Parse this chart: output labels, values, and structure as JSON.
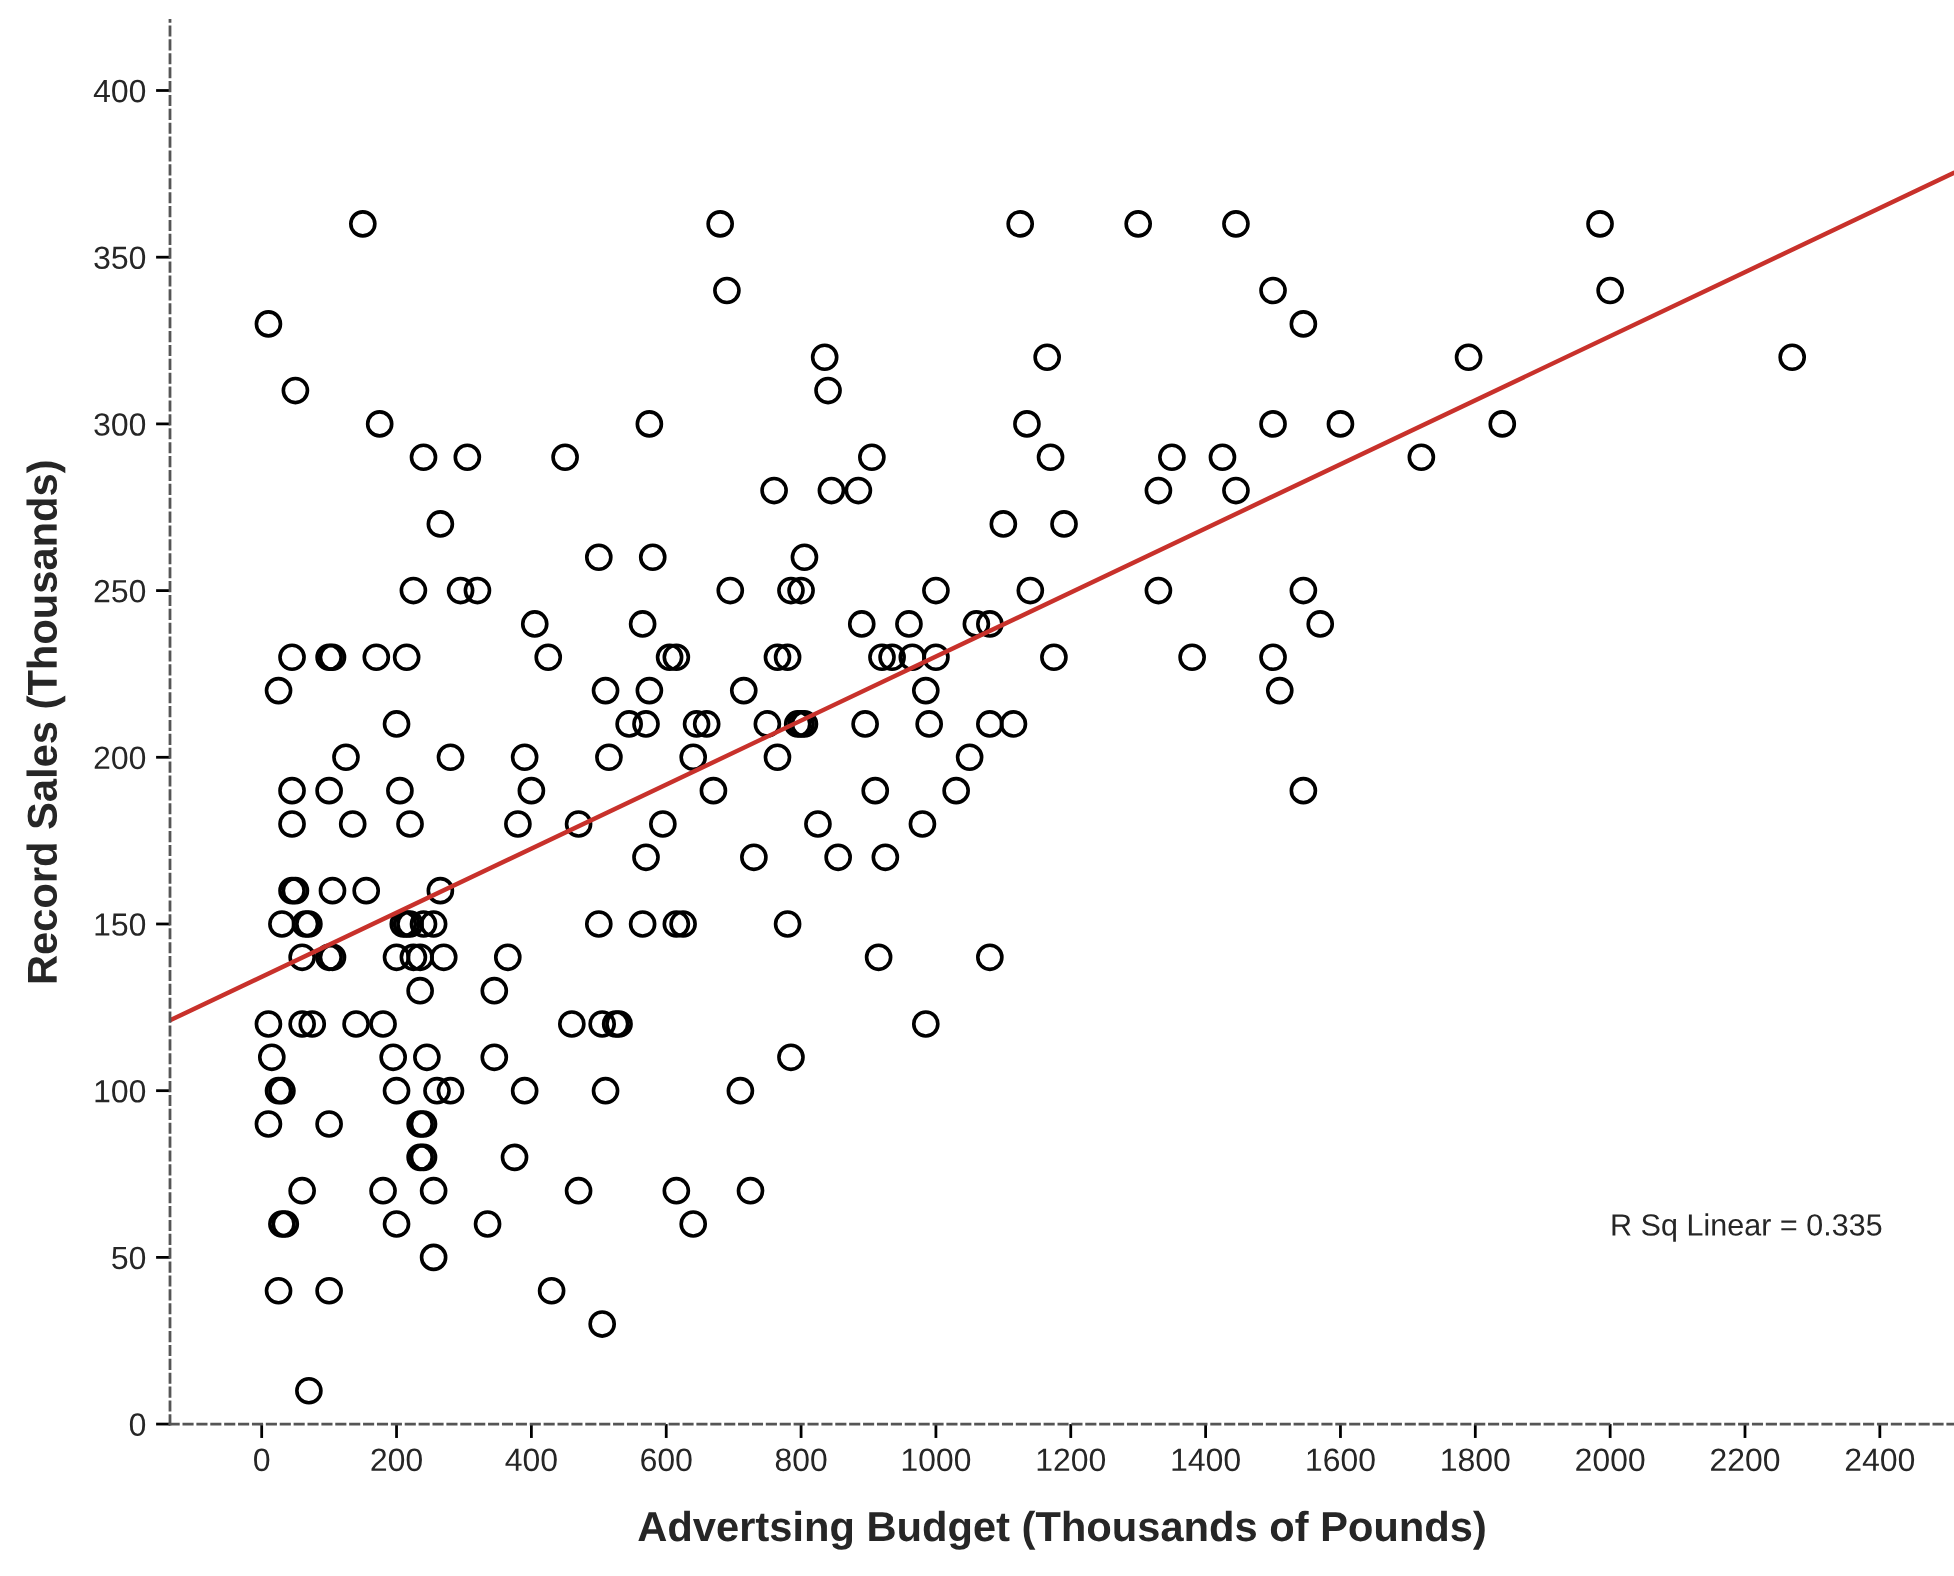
{
  "chart_data": {
    "type": "scatter",
    "xlabel": "Advertsing Budget (Thousands of Pounds)",
    "ylabel": "Record Sales (Thousands)",
    "xlim": [
      -136,
      2510
    ],
    "ylim": [
      0,
      421
    ],
    "xticks": [
      0,
      200,
      400,
      600,
      800,
      1000,
      1200,
      1400,
      1600,
      1800,
      2000,
      2200,
      2400
    ],
    "yticks": [
      0,
      50,
      100,
      150,
      200,
      250,
      300,
      350,
      400
    ],
    "annotations": [
      "R Sq Linear = 0.335"
    ],
    "series": [
      {
        "marker": "circle",
        "color": "#000000",
        "x": [
          150,
          680,
          1125,
          1300,
          1445,
          1985,
          690,
          1500,
          2000,
          10,
          1545,
          835,
          1165,
          1790,
          2270,
          50,
          840,
          175,
          575,
          1135,
          1500,
          1600,
          1840,
          240,
          305,
          450,
          905,
          1170,
          1350,
          1425,
          1720,
          760,
          845,
          885,
          1330,
          1445,
          265,
          1100,
          1190,
          500,
          580,
          805,
          225,
          295,
          320,
          695,
          785,
          800,
          1000,
          1140,
          1330,
          1545,
          405,
          565,
          890,
          960,
          1060,
          1080,
          1570,
          45,
          100,
          105,
          170,
          215,
          425,
          605,
          615,
          765,
          780,
          920,
          935,
          965,
          1000,
          1175,
          1380,
          1500,
          25,
          510,
          575,
          715,
          985,
          1510,
          200,
          545,
          570,
          645,
          660,
          750,
          795,
          800,
          805,
          895,
          990,
          1080,
          1115,
          125,
          280,
          390,
          515,
          640,
          765,
          1050,
          45,
          100,
          205,
          400,
          670,
          910,
          1030,
          1545,
          45,
          135,
          220,
          380,
          470,
          595,
          825,
          980,
          570,
          730,
          855,
          925,
          45,
          50,
          105,
          155,
          265,
          30,
          65,
          70,
          210,
          215,
          220,
          240,
          255,
          500,
          565,
          615,
          625,
          780,
          60,
          100,
          105,
          200,
          225,
          235,
          270,
          365,
          915,
          1080,
          235,
          345,
          10,
          60,
          75,
          140,
          180,
          460,
          505,
          525,
          530,
          985,
          15,
          195,
          245,
          345,
          785,
          25,
          30,
          200,
          260,
          280,
          390,
          510,
          710,
          10,
          100,
          235,
          240,
          235,
          240,
          375,
          60,
          180,
          255,
          470,
          615,
          725,
          30,
          35,
          200,
          335,
          640,
          255,
          25,
          100,
          430,
          505,
          70
        ],
        "values": [
          360,
          360,
          360,
          360,
          360,
          360,
          340,
          340,
          340,
          330,
          330,
          320,
          320,
          320,
          320,
          310,
          310,
          300,
          300,
          300,
          300,
          300,
          300,
          290,
          290,
          290,
          290,
          290,
          290,
          290,
          290,
          280,
          280,
          280,
          280,
          280,
          270,
          270,
          270,
          260,
          260,
          260,
          250,
          250,
          250,
          250,
          250,
          250,
          250,
          250,
          250,
          250,
          240,
          240,
          240,
          240,
          240,
          240,
          240,
          230,
          230,
          230,
          230,
          230,
          230,
          230,
          230,
          230,
          230,
          230,
          230,
          230,
          230,
          230,
          230,
          230,
          220,
          220,
          220,
          220,
          220,
          220,
          210,
          210,
          210,
          210,
          210,
          210,
          210,
          210,
          210,
          210,
          210,
          210,
          210,
          200,
          200,
          200,
          200,
          200,
          200,
          200,
          190,
          190,
          190,
          190,
          190,
          190,
          190,
          190,
          180,
          180,
          180,
          180,
          180,
          180,
          180,
          180,
          170,
          170,
          170,
          170,
          160,
          160,
          160,
          160,
          160,
          150,
          150,
          150,
          150,
          150,
          150,
          150,
          150,
          150,
          150,
          150,
          150,
          150,
          140,
          140,
          140,
          140,
          140,
          140,
          140,
          140,
          140,
          140,
          130,
          130,
          120,
          120,
          120,
          120,
          120,
          120,
          120,
          120,
          120,
          120,
          110,
          110,
          110,
          110,
          110,
          100,
          100,
          100,
          100,
          100,
          100,
          100,
          100,
          90,
          90,
          90,
          90,
          80,
          80,
          80,
          70,
          70,
          70,
          70,
          70,
          70,
          60,
          60,
          60,
          60,
          60,
          50,
          40,
          40,
          40,
          30,
          10
        ]
      },
      {
        "type": "line",
        "marker": "none",
        "color": "#c8312b",
        "x": [
          -136,
          2510
        ],
        "values": [
          121.1,
          375.3
        ]
      }
    ]
  }
}
